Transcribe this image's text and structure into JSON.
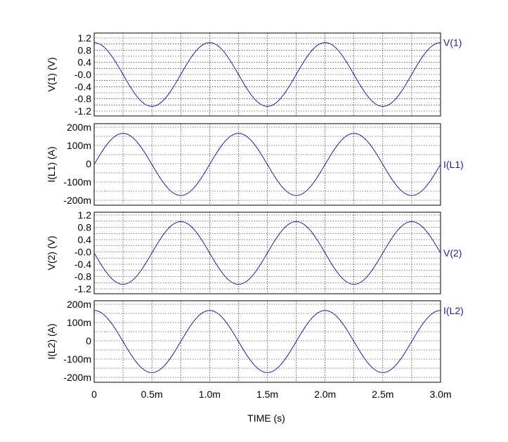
{
  "trace_color": "#1f1f9f",
  "x_axis": {
    "label": "TIME  (s)",
    "ticks": [
      "0",
      "0.5m",
      "1.0m",
      "1.5m",
      "2.0m",
      "2.5m",
      "3.0m"
    ],
    "range": [
      0,
      0.003
    ]
  },
  "chart_data": [
    {
      "type": "line",
      "ylabel": "V(1)  (V)",
      "series": [
        {
          "name": "V(1)",
          "expr": "cos",
          "amplitude": 1.0,
          "frequency_hz": 1000
        }
      ],
      "yticks": [
        "1.2",
        "0.8",
        "0.4",
        "-0.0",
        "-0.4",
        "-0.8",
        "-1.2"
      ],
      "ylim": [
        -1.3,
        1.3
      ],
      "x": [
        0,
        0.0005,
        0.001,
        0.0015,
        0.002,
        0.0025,
        0.003
      ],
      "values": [
        1.0,
        -1.0,
        1.0,
        -1.0,
        1.0,
        -1.0,
        1.0
      ]
    },
    {
      "type": "line",
      "ylabel": "I(L1)  (A)",
      "series": [
        {
          "name": "I(L1)",
          "expr": "sin",
          "amplitude": 0.16,
          "frequency_hz": 1000
        }
      ],
      "yticks": [
        "200m",
        "100m",
        "0",
        "-100m",
        "-200m"
      ],
      "ylim": [
        -0.21,
        0.21
      ],
      "x": [
        0,
        0.00025,
        0.00075,
        0.00125,
        0.00175,
        0.00225,
        0.00275,
        0.003
      ],
      "values": [
        0,
        0.16,
        -0.16,
        0.16,
        -0.16,
        0.16,
        -0.16,
        0
      ]
    },
    {
      "type": "line",
      "ylabel": "V(2)  (V)",
      "series": [
        {
          "name": "V(2)",
          "expr": "-sin",
          "amplitude": 1.0,
          "frequency_hz": 1000
        }
      ],
      "yticks": [
        "1.2",
        "0.8",
        "0.4",
        "-0.0",
        "-0.4",
        "-0.8",
        "-1.2"
      ],
      "ylim": [
        -1.3,
        1.3
      ],
      "x": [
        0,
        0.00025,
        0.00075,
        0.00125,
        0.00175,
        0.00225,
        0.00275,
        0.003
      ],
      "values": [
        0,
        -1.0,
        1.0,
        -1.0,
        1.0,
        -1.0,
        1.0,
        0
      ]
    },
    {
      "type": "line",
      "ylabel": "I(L2)  (A)",
      "series": [
        {
          "name": "I(L2)",
          "expr": "cos",
          "amplitude": 0.16,
          "frequency_hz": 1000
        }
      ],
      "yticks": [
        "200m",
        "100m",
        "0",
        "-100m",
        "-200m"
      ],
      "ylim": [
        -0.21,
        0.21
      ],
      "x": [
        0,
        0.0005,
        0.001,
        0.0015,
        0.002,
        0.0025,
        0.003
      ],
      "values": [
        0.16,
        -0.16,
        0.16,
        -0.16,
        0.16,
        -0.16,
        0.16
      ]
    }
  ]
}
